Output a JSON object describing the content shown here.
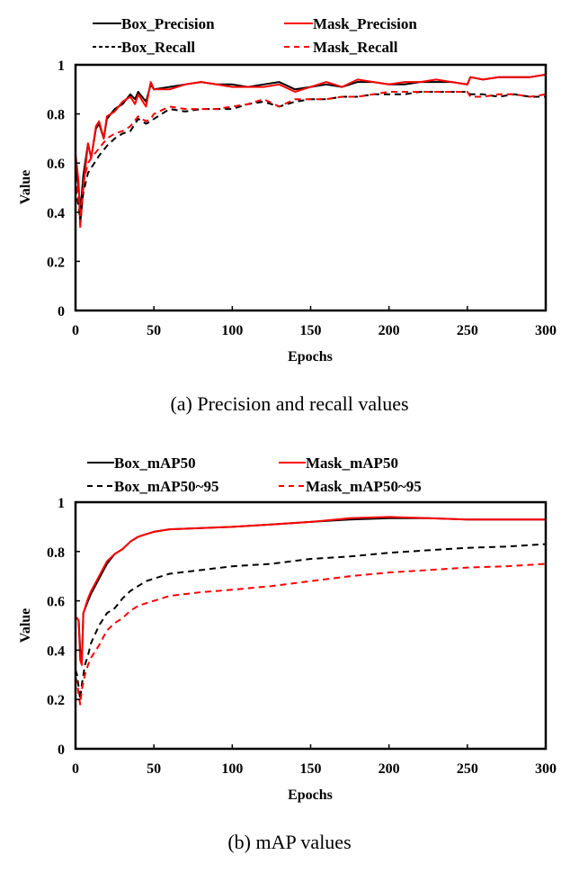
{
  "chart_data": [
    {
      "type": "line",
      "caption": "(a) Precision and recall values",
      "xlabel": "Epochs",
      "ylabel": "Value",
      "xlim": [
        0,
        300
      ],
      "ylim": [
        0,
        1
      ],
      "xticks": [
        "0",
        "50",
        "100",
        "150",
        "200",
        "250",
        "300"
      ],
      "yticks": [
        "0",
        "0.2",
        "0.4",
        "0.6",
        "0.8",
        "1"
      ],
      "grid": false,
      "legend_position": "top",
      "series": [
        {
          "name": "Box_Precision",
          "color": "#000000",
          "dash": "solid",
          "x": [
            0,
            2,
            3,
            5,
            8,
            10,
            13,
            15,
            18,
            20,
            25,
            30,
            35,
            38,
            40,
            45,
            48,
            50,
            60,
            70,
            80,
            90,
            100,
            110,
            120,
            130,
            140,
            150,
            160,
            170,
            180,
            190,
            200,
            210,
            220,
            230,
            240,
            250,
            252,
            260,
            270,
            280,
            290,
            300
          ],
          "y": [
            0.6,
            0.5,
            0.4,
            0.55,
            0.68,
            0.62,
            0.74,
            0.76,
            0.7,
            0.78,
            0.82,
            0.84,
            0.88,
            0.86,
            0.89,
            0.85,
            0.92,
            0.9,
            0.91,
            0.92,
            0.93,
            0.92,
            0.92,
            0.91,
            0.92,
            0.93,
            0.9,
            0.91,
            0.92,
            0.91,
            0.93,
            0.93,
            0.92,
            0.92,
            0.93,
            0.93,
            0.93,
            0.92,
            0.95,
            0.94,
            0.95,
            0.95,
            0.95,
            0.96
          ]
        },
        {
          "name": "Mask_Precision",
          "color": "#ff0000",
          "dash": "solid",
          "x": [
            0,
            2,
            3,
            5,
            8,
            10,
            13,
            15,
            18,
            20,
            25,
            30,
            35,
            38,
            40,
            45,
            48,
            50,
            60,
            70,
            80,
            90,
            100,
            110,
            120,
            130,
            140,
            150,
            160,
            170,
            180,
            190,
            200,
            210,
            220,
            230,
            240,
            250,
            252,
            260,
            270,
            280,
            290,
            300
          ],
          "y": [
            0.64,
            0.52,
            0.34,
            0.5,
            0.68,
            0.62,
            0.75,
            0.77,
            0.7,
            0.79,
            0.81,
            0.85,
            0.87,
            0.84,
            0.88,
            0.83,
            0.93,
            0.9,
            0.9,
            0.92,
            0.93,
            0.92,
            0.91,
            0.91,
            0.91,
            0.92,
            0.89,
            0.91,
            0.93,
            0.91,
            0.94,
            0.93,
            0.92,
            0.93,
            0.93,
            0.94,
            0.93,
            0.92,
            0.95,
            0.94,
            0.95,
            0.95,
            0.95,
            0.96
          ]
        },
        {
          "name": "Box_Recall",
          "color": "#000000",
          "dash": "dashed",
          "x": [
            0,
            2,
            3,
            5,
            8,
            10,
            15,
            20,
            25,
            30,
            35,
            40,
            45,
            48,
            50,
            60,
            70,
            80,
            90,
            100,
            110,
            120,
            130,
            140,
            150,
            160,
            170,
            180,
            190,
            200,
            210,
            220,
            230,
            240,
            250,
            252,
            260,
            270,
            280,
            290,
            300
          ],
          "y": [
            0.5,
            0.42,
            0.37,
            0.48,
            0.56,
            0.58,
            0.63,
            0.67,
            0.7,
            0.72,
            0.73,
            0.78,
            0.76,
            0.77,
            0.78,
            0.82,
            0.81,
            0.82,
            0.82,
            0.82,
            0.84,
            0.85,
            0.83,
            0.85,
            0.86,
            0.86,
            0.87,
            0.87,
            0.88,
            0.88,
            0.88,
            0.89,
            0.89,
            0.89,
            0.89,
            0.88,
            0.88,
            0.87,
            0.88,
            0.87,
            0.87
          ]
        },
        {
          "name": "Mask_Recall",
          "color": "#ff0000",
          "dash": "dashed",
          "x": [
            0,
            2,
            3,
            5,
            8,
            10,
            15,
            20,
            25,
            30,
            35,
            40,
            45,
            48,
            50,
            60,
            70,
            80,
            90,
            100,
            110,
            120,
            130,
            140,
            150,
            160,
            170,
            180,
            190,
            200,
            210,
            220,
            230,
            240,
            250,
            252,
            260,
            270,
            280,
            290,
            300
          ],
          "y": [
            0.55,
            0.45,
            0.38,
            0.52,
            0.6,
            0.62,
            0.66,
            0.7,
            0.72,
            0.73,
            0.75,
            0.79,
            0.77,
            0.78,
            0.8,
            0.83,
            0.82,
            0.82,
            0.82,
            0.83,
            0.84,
            0.86,
            0.83,
            0.86,
            0.86,
            0.86,
            0.87,
            0.87,
            0.88,
            0.89,
            0.89,
            0.89,
            0.89,
            0.89,
            0.89,
            0.87,
            0.87,
            0.88,
            0.88,
            0.87,
            0.88
          ]
        }
      ]
    },
    {
      "type": "line",
      "caption": "(b) mAP values",
      "xlabel": "Epochs",
      "ylabel": "Value",
      "xlim": [
        0,
        300
      ],
      "ylim": [
        0,
        1
      ],
      "xticks": [
        "0",
        "50",
        "100",
        "150",
        "200",
        "250",
        "300"
      ],
      "yticks": [
        "0",
        "0.2",
        "0.4",
        "0.6",
        "0.8",
        "1"
      ],
      "grid": false,
      "legend_position": "top",
      "series": [
        {
          "name": "Box_mAP50",
          "color": "#000000",
          "dash": "solid",
          "x": [
            0,
            1,
            2,
            3,
            4,
            5,
            8,
            10,
            15,
            20,
            25,
            30,
            35,
            40,
            45,
            50,
            60,
            80,
            100,
            125,
            150,
            175,
            200,
            225,
            250,
            275,
            300
          ],
          "y": [
            0.53,
            0.53,
            0.52,
            0.4,
            0.36,
            0.55,
            0.6,
            0.63,
            0.69,
            0.75,
            0.79,
            0.81,
            0.84,
            0.86,
            0.87,
            0.88,
            0.89,
            0.895,
            0.9,
            0.91,
            0.92,
            0.93,
            0.935,
            0.935,
            0.93,
            0.93,
            0.93
          ]
        },
        {
          "name": "Mask_mAP50",
          "color": "#ff0000",
          "dash": "solid",
          "x": [
            0,
            1,
            2,
            3,
            4,
            5,
            8,
            10,
            15,
            20,
            25,
            30,
            35,
            40,
            45,
            50,
            60,
            80,
            100,
            125,
            150,
            175,
            200,
            225,
            250,
            275,
            300
          ],
          "y": [
            0.53,
            0.53,
            0.52,
            0.36,
            0.34,
            0.55,
            0.61,
            0.64,
            0.7,
            0.76,
            0.79,
            0.81,
            0.84,
            0.86,
            0.87,
            0.88,
            0.89,
            0.895,
            0.9,
            0.91,
            0.92,
            0.935,
            0.94,
            0.935,
            0.93,
            0.93,
            0.93
          ]
        },
        {
          "name": "Box_mAP50~95",
          "color": "#000000",
          "dash": "dashed",
          "x": [
            0,
            1,
            2,
            3,
            4,
            6,
            8,
            10,
            15,
            20,
            25,
            30,
            35,
            40,
            45,
            50,
            60,
            80,
            100,
            125,
            150,
            175,
            200,
            225,
            250,
            275,
            300
          ],
          "y": [
            0.32,
            0.3,
            0.25,
            0.2,
            0.26,
            0.34,
            0.38,
            0.43,
            0.5,
            0.55,
            0.57,
            0.61,
            0.64,
            0.66,
            0.68,
            0.69,
            0.71,
            0.725,
            0.74,
            0.75,
            0.77,
            0.78,
            0.795,
            0.805,
            0.815,
            0.82,
            0.83
          ]
        },
        {
          "name": "Mask_mAP50~95",
          "color": "#ff0000",
          "dash": "dashed",
          "x": [
            0,
            1,
            2,
            3,
            4,
            6,
            8,
            10,
            15,
            20,
            25,
            30,
            35,
            40,
            45,
            50,
            60,
            80,
            100,
            125,
            150,
            175,
            200,
            225,
            250,
            275,
            300
          ],
          "y": [
            0.29,
            0.27,
            0.22,
            0.18,
            0.24,
            0.3,
            0.34,
            0.37,
            0.42,
            0.48,
            0.51,
            0.53,
            0.56,
            0.58,
            0.59,
            0.6,
            0.62,
            0.635,
            0.645,
            0.66,
            0.68,
            0.7,
            0.715,
            0.725,
            0.735,
            0.74,
            0.75
          ]
        }
      ]
    }
  ]
}
